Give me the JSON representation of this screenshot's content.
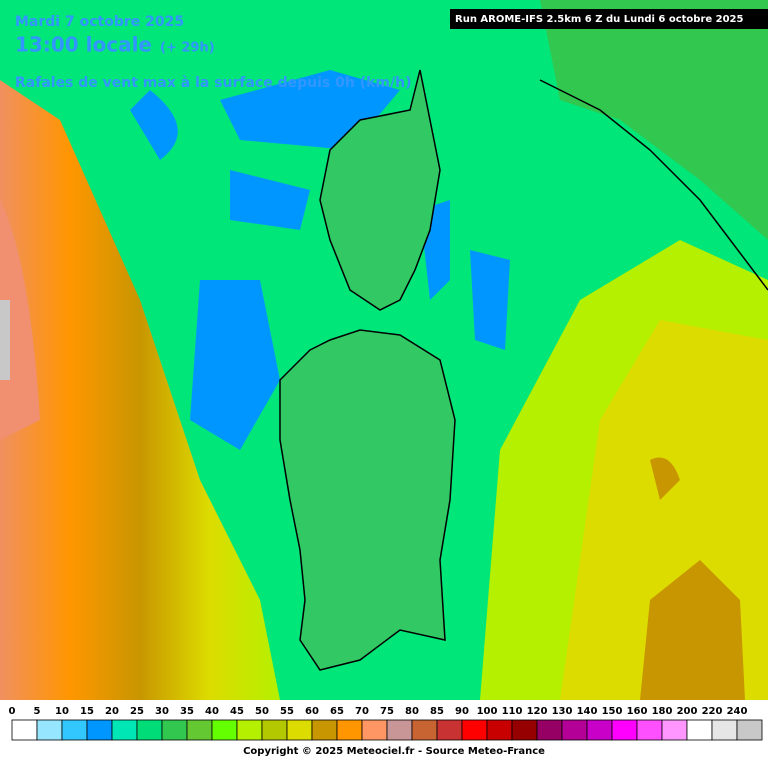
{
  "header": {
    "date": "Mardi 7 octobre 2025",
    "time": "13:00 locale",
    "offset": "(+ 29h)",
    "subtitle": "Rafales de vent max à la surface depuis 0h (km/h)",
    "run": "Run AROME-IFS 2.5km 6 Z du Lundi 6 octobre 2025"
  },
  "legend": {
    "items": [
      {
        "label": "0",
        "color": "#ffffff"
      },
      {
        "label": "5",
        "color": "#96e6ff"
      },
      {
        "label": "10",
        "color": "#32c8ff"
      },
      {
        "label": "15",
        "color": "#0096ff"
      },
      {
        "label": "20",
        "color": "#00e6b4"
      },
      {
        "label": "25",
        "color": "#00dc78"
      },
      {
        "label": "30",
        "color": "#32c850"
      },
      {
        "label": "35",
        "color": "#64c832"
      },
      {
        "label": "40",
        "color": "#64ff00"
      },
      {
        "label": "45",
        "color": "#b4f000"
      },
      {
        "label": "50",
        "color": "#b4c800"
      },
      {
        "label": "55",
        "color": "#dcdc00"
      },
      {
        "label": "60",
        "color": "#c89600"
      },
      {
        "label": "65",
        "color": "#ff9600"
      },
      {
        "label": "70",
        "color": "#ff9664"
      },
      {
        "label": "75",
        "color": "#c89696"
      },
      {
        "label": "80",
        "color": "#c86432"
      },
      {
        "label": "85",
        "color": "#c83232"
      },
      {
        "label": "90",
        "color": "#ff0000"
      },
      {
        "label": "100",
        "color": "#c80000"
      },
      {
        "label": "110",
        "color": "#960000"
      },
      {
        "label": "120",
        "color": "#960064"
      },
      {
        "label": "130",
        "color": "#b40096"
      },
      {
        "label": "140",
        "color": "#c800c8"
      },
      {
        "label": "150",
        "color": "#ff00ff"
      },
      {
        "label": "160",
        "color": "#ff50ff"
      },
      {
        "label": "180",
        "color": "#ff96ff"
      },
      {
        "label": "200",
        "color": "#ffffff"
      },
      {
        "label": "220",
        "color": "#e6e6e6"
      },
      {
        "label": "240",
        "color": "#c8c8c8"
      }
    ]
  },
  "footer": {
    "copyright": "Copyright © 2025 Meteociel.fr - Source Meteo-France"
  }
}
